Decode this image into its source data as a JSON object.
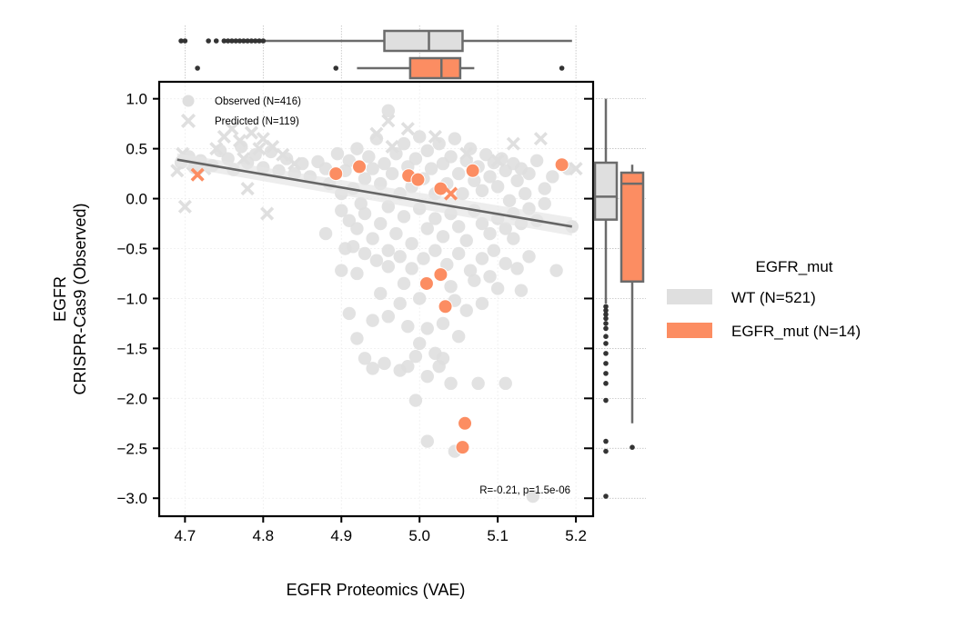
{
  "chart_data": {
    "type": "scatter",
    "xlabel": "EGFR Proteomics (VAE)",
    "ylabel_line1": "EGFR",
    "ylabel_line2": "CRISPR-Cas9 (Observed)",
    "xlim": [
      4.667,
      5.222
    ],
    "ylim": [
      -3.18,
      1.17
    ],
    "x_ticks": [
      {
        "value": 4.7,
        "label": "4.7"
      },
      {
        "value": 4.8,
        "label": "4.8"
      },
      {
        "value": 4.9,
        "label": "4.9"
      },
      {
        "value": 5.0,
        "label": "5.0"
      },
      {
        "value": 5.1,
        "label": "5.1"
      },
      {
        "value": 5.2,
        "label": "5.2"
      }
    ],
    "y_ticks": [
      {
        "value": 1.0,
        "label": "1.0"
      },
      {
        "value": 0.5,
        "label": "0.5"
      },
      {
        "value": 0.0,
        "label": "0.0"
      },
      {
        "value": -0.5,
        "label": "−0.5"
      },
      {
        "value": -1.0,
        "label": "−1.0"
      },
      {
        "value": -1.5,
        "label": "−1.5"
      },
      {
        "value": -2.0,
        "label": "−2.0"
      },
      {
        "value": -2.5,
        "label": "−2.5"
      },
      {
        "value": -3.0,
        "label": "−3.0"
      }
    ],
    "grid": true,
    "colors": {
      "wt": "#dfdfdf",
      "mut": "#fc8d62",
      "line": "#666666",
      "box_edge": "#6b6b6b",
      "outlier": "#333333"
    },
    "marker_legend": {
      "placement": "top-left",
      "observed_label": "Observed (N=416)",
      "predicted_label": "Predicted (N=119)"
    },
    "hue_legend": {
      "title": "EGFR_mut",
      "placement": "right-outside",
      "entries": [
        {
          "label": "WT (N=521)",
          "color": "#dfdfdf"
        },
        {
          "label": "EGFR_mut (N=14)",
          "color": "#fc8d62"
        }
      ]
    },
    "annotation": "R=-0.21, p=1.5e-06",
    "regression": {
      "x": [
        4.69,
        5.195
      ],
      "y": [
        0.39,
        -0.28
      ]
    },
    "mut_observed": [
      {
        "x": 4.893,
        "y": 0.25
      },
      {
        "x": 4.923,
        "y": 0.32
      },
      {
        "x": 4.986,
        "y": 0.23
      },
      {
        "x": 4.998,
        "y": 0.19
      },
      {
        "x": 5.027,
        "y": 0.1
      },
      {
        "x": 5.068,
        "y": 0.28
      },
      {
        "x": 5.182,
        "y": 0.34
      },
      {
        "x": 5.009,
        "y": -0.85
      },
      {
        "x": 5.027,
        "y": -0.76
      },
      {
        "x": 5.033,
        "y": -1.08
      },
      {
        "x": 5.058,
        "y": -2.25
      },
      {
        "x": 5.055,
        "y": -2.49
      }
    ],
    "mut_predicted": [
      {
        "x": 4.716,
        "y": 0.24
      },
      {
        "x": 5.04,
        "y": 0.05
      }
    ],
    "wt_observed": [
      {
        "x": 4.695,
        "y": 0.36
      },
      {
        "x": 4.705,
        "y": 0.42
      },
      {
        "x": 4.712,
        "y": 0.31
      },
      {
        "x": 4.72,
        "y": 0.38
      },
      {
        "x": 4.735,
        "y": 0.33
      },
      {
        "x": 4.745,
        "y": 0.48
      },
      {
        "x": 4.755,
        "y": 0.4
      },
      {
        "x": 4.762,
        "y": 0.29
      },
      {
        "x": 4.772,
        "y": 0.52
      },
      {
        "x": 4.78,
        "y": 0.36
      },
      {
        "x": 4.79,
        "y": 0.44
      },
      {
        "x": 4.8,
        "y": 0.31
      },
      {
        "x": 4.81,
        "y": 0.47
      },
      {
        "x": 4.82,
        "y": 0.28
      },
      {
        "x": 4.83,
        "y": 0.4
      },
      {
        "x": 4.84,
        "y": 0.25
      },
      {
        "x": 4.85,
        "y": 0.35
      },
      {
        "x": 4.86,
        "y": 0.22
      },
      {
        "x": 4.87,
        "y": 0.37
      },
      {
        "x": 4.88,
        "y": 0.3
      },
      {
        "x": 4.885,
        "y": 0.15
      },
      {
        "x": 4.895,
        "y": 0.45
      },
      {
        "x": 4.9,
        "y": 0.05
      },
      {
        "x": 4.905,
        "y": 0.28
      },
      {
        "x": 4.91,
        "y": 0.38
      },
      {
        "x": 4.915,
        "y": 0.1
      },
      {
        "x": 4.92,
        "y": 0.5
      },
      {
        "x": 4.925,
        "y": -0.05
      },
      {
        "x": 4.93,
        "y": 0.2
      },
      {
        "x": 4.935,
        "y": 0.42
      },
      {
        "x": 4.94,
        "y": 0.3
      },
      {
        "x": 4.945,
        "y": 0.6
      },
      {
        "x": 4.95,
        "y": 0.15
      },
      {
        "x": 4.955,
        "y": 0.35
      },
      {
        "x": 4.96,
        "y": 0.88
      },
      {
        "x": 4.965,
        "y": 0.25
      },
      {
        "x": 4.97,
        "y": 0.45
      },
      {
        "x": 4.975,
        "y": 0.05
      },
      {
        "x": 4.98,
        "y": 0.55
      },
      {
        "x": 4.985,
        "y": 0.32
      },
      {
        "x": 4.99,
        "y": 0.12
      },
      {
        "x": 4.995,
        "y": 0.4
      },
      {
        "x": 5.0,
        "y": 0.62
      },
      {
        "x": 5.005,
        "y": 0.2
      },
      {
        "x": 5.01,
        "y": 0.48
      },
      {
        "x": 5.015,
        "y": 0.3
      },
      {
        "x": 5.02,
        "y": 0.05
      },
      {
        "x": 5.025,
        "y": 0.55
      },
      {
        "x": 5.03,
        "y": 0.35
      },
      {
        "x": 5.035,
        "y": 0.15
      },
      {
        "x": 5.04,
        "y": 0.42
      },
      {
        "x": 5.045,
        "y": 0.6
      },
      {
        "x": 5.05,
        "y": 0.25
      },
      {
        "x": 5.055,
        "y": 0.05
      },
      {
        "x": 5.06,
        "y": 0.38
      },
      {
        "x": 5.065,
        "y": 0.5
      },
      {
        "x": 5.07,
        "y": 0.18
      },
      {
        "x": 5.075,
        "y": 0.32
      },
      {
        "x": 5.08,
        "y": 0.08
      },
      {
        "x": 5.085,
        "y": 0.44
      },
      {
        "x": 5.09,
        "y": 0.22
      },
      {
        "x": 5.095,
        "y": 0.36
      },
      {
        "x": 5.1,
        "y": 0.12
      },
      {
        "x": 5.105,
        "y": 0.4
      },
      {
        "x": 5.11,
        "y": 0.28
      },
      {
        "x": 5.115,
        "y": -0.02
      },
      {
        "x": 5.12,
        "y": 0.35
      },
      {
        "x": 5.125,
        "y": 0.18
      },
      {
        "x": 5.13,
        "y": 0.3
      },
      {
        "x": 5.135,
        "y": 0.05
      },
      {
        "x": 5.14,
        "y": 0.25
      },
      {
        "x": 5.15,
        "y": 0.38
      },
      {
        "x": 5.16,
        "y": 0.1
      },
      {
        "x": 5.17,
        "y": 0.22
      },
      {
        "x": 5.19,
        "y": 0.3
      },
      {
        "x": 5.195,
        "y": -0.28
      },
      {
        "x": 4.88,
        "y": -0.35
      },
      {
        "x": 4.9,
        "y": -0.12
      },
      {
        "x": 4.91,
        "y": -0.22
      },
      {
        "x": 4.92,
        "y": -0.3
      },
      {
        "x": 4.93,
        "y": -0.15
      },
      {
        "x": 4.94,
        "y": -0.4
      },
      {
        "x": 4.95,
        "y": -0.25
      },
      {
        "x": 4.96,
        "y": -0.08
      },
      {
        "x": 4.97,
        "y": -0.35
      },
      {
        "x": 4.98,
        "y": -0.18
      },
      {
        "x": 4.99,
        "y": -0.45
      },
      {
        "x": 5.0,
        "y": -0.1
      },
      {
        "x": 5.01,
        "y": -0.3
      },
      {
        "x": 5.02,
        "y": -0.2
      },
      {
        "x": 5.03,
        "y": -0.38
      },
      {
        "x": 5.04,
        "y": -0.15
      },
      {
        "x": 5.05,
        "y": -0.28
      },
      {
        "x": 5.06,
        "y": -0.42
      },
      {
        "x": 5.07,
        "y": -0.12
      },
      {
        "x": 5.08,
        "y": -0.25
      },
      {
        "x": 5.09,
        "y": -0.35
      },
      {
        "x": 5.1,
        "y": -0.2
      },
      {
        "x": 5.11,
        "y": -0.3
      },
      {
        "x": 5.12,
        "y": -0.15
      },
      {
        "x": 5.13,
        "y": -0.25
      },
      {
        "x": 5.14,
        "y": -0.1
      },
      {
        "x": 5.15,
        "y": -0.22
      },
      {
        "x": 5.16,
        "y": -0.05
      },
      {
        "x": 4.905,
        "y": -0.5
      },
      {
        "x": 4.915,
        "y": -0.48
      },
      {
        "x": 4.93,
        "y": -0.55
      },
      {
        "x": 4.945,
        "y": -0.62
      },
      {
        "x": 4.96,
        "y": -0.52
      },
      {
        "x": 4.975,
        "y": -0.58
      },
      {
        "x": 4.99,
        "y": -0.7
      },
      {
        "x": 5.005,
        "y": -0.6
      },
      {
        "x": 5.02,
        "y": -0.52
      },
      {
        "x": 5.035,
        "y": -0.66
      },
      {
        "x": 5.05,
        "y": -0.55
      },
      {
        "x": 5.065,
        "y": -0.72
      },
      {
        "x": 5.08,
        "y": -0.6
      },
      {
        "x": 5.095,
        "y": -0.52
      },
      {
        "x": 5.11,
        "y": -0.65
      },
      {
        "x": 5.125,
        "y": -0.7
      },
      {
        "x": 5.14,
        "y": -0.58
      },
      {
        "x": 5.175,
        "y": -0.72
      },
      {
        "x": 4.9,
        "y": -0.72
      },
      {
        "x": 4.92,
        "y": -0.75
      },
      {
        "x": 4.96,
        "y": -0.68
      },
      {
        "x": 4.98,
        "y": -0.85
      },
      {
        "x": 5.04,
        "y": -0.88
      },
      {
        "x": 5.07,
        "y": -0.82
      },
      {
        "x": 5.09,
        "y": -0.78
      },
      {
        "x": 5.1,
        "y": -0.9
      },
      {
        "x": 5.13,
        "y": -0.92
      },
      {
        "x": 4.95,
        "y": -0.95
      },
      {
        "x": 4.975,
        "y": -1.05
      },
      {
        "x": 5.0,
        "y": -1.0
      },
      {
        "x": 5.045,
        "y": -1.02
      },
      {
        "x": 5.06,
        "y": -1.12
      },
      {
        "x": 5.08,
        "y": -1.05
      },
      {
        "x": 4.91,
        "y": -1.15
      },
      {
        "x": 4.94,
        "y": -1.22
      },
      {
        "x": 4.96,
        "y": -1.18
      },
      {
        "x": 4.985,
        "y": -1.28
      },
      {
        "x": 5.01,
        "y": -1.3
      },
      {
        "x": 5.03,
        "y": -1.25
      },
      {
        "x": 5.05,
        "y": -1.38
      },
      {
        "x": 5.0,
        "y": -1.45
      },
      {
        "x": 5.02,
        "y": -1.55
      },
      {
        "x": 4.92,
        "y": -1.4
      },
      {
        "x": 4.995,
        "y": -1.58
      },
      {
        "x": 4.93,
        "y": -1.6
      },
      {
        "x": 4.94,
        "y": -1.7
      },
      {
        "x": 4.955,
        "y": -1.65
      },
      {
        "x": 4.975,
        "y": -1.72
      },
      {
        "x": 4.985,
        "y": -1.68
      },
      {
        "x": 5.01,
        "y": -1.78
      },
      {
        "x": 5.03,
        "y": -1.6
      },
      {
        "x": 5.04,
        "y": -1.85
      },
      {
        "x": 4.995,
        "y": -2.02
      },
      {
        "x": 5.075,
        "y": -1.85
      },
      {
        "x": 5.11,
        "y": -1.85
      },
      {
        "x": 5.025,
        "y": -1.68
      },
      {
        "x": 5.01,
        "y": -2.43
      },
      {
        "x": 5.045,
        "y": -2.53
      },
      {
        "x": 5.145,
        "y": -2.98
      },
      {
        "x": 5.12,
        "y": -0.4
      }
    ],
    "wt_predicted": [
      {
        "x": 4.69,
        "y": 0.28
      },
      {
        "x": 4.697,
        "y": 0.45
      },
      {
        "x": 4.7,
        "y": -0.08
      },
      {
        "x": 4.71,
        "y": 0.35
      },
      {
        "x": 4.725,
        "y": 0.3
      },
      {
        "x": 4.74,
        "y": 0.5
      },
      {
        "x": 4.75,
        "y": 0.62
      },
      {
        "x": 4.76,
        "y": 0.7
      },
      {
        "x": 4.77,
        "y": 0.58
      },
      {
        "x": 4.775,
        "y": 0.4
      },
      {
        "x": 4.785,
        "y": 0.66
      },
      {
        "x": 4.795,
        "y": 0.5
      },
      {
        "x": 4.8,
        "y": 0.6
      },
      {
        "x": 4.805,
        "y": -0.15
      },
      {
        "x": 4.812,
        "y": 0.52
      },
      {
        "x": 4.825,
        "y": 0.44
      },
      {
        "x": 4.84,
        "y": 0.35
      },
      {
        "x": 4.78,
        "y": 0.1
      },
      {
        "x": 4.945,
        "y": 0.65
      },
      {
        "x": 4.965,
        "y": 0.52
      },
      {
        "x": 4.985,
        "y": 0.7
      },
      {
        "x": 5.02,
        "y": 0.62
      },
      {
        "x": 5.06,
        "y": 0.45
      },
      {
        "x": 5.1,
        "y": 0.38
      },
      {
        "x": 5.155,
        "y": 0.6
      },
      {
        "x": 5.2,
        "y": 0.3
      },
      {
        "x": 5.12,
        "y": 0.55
      },
      {
        "x": 4.96,
        "y": 0.78
      }
    ],
    "x_marginal": {
      "wt": {
        "q1": 4.955,
        "median": 5.012,
        "q3": 5.055,
        "whisker_low": 4.8,
        "whisker_high": 5.195,
        "outliers": [
          4.695,
          4.7,
          4.73,
          4.74,
          4.75,
          4.755,
          4.76,
          4.765,
          4.77,
          4.775,
          4.78,
          4.785,
          4.79,
          4.795,
          4.8
        ]
      },
      "mut": {
        "q1": 4.988,
        "median": 5.028,
        "q3": 5.052,
        "whisker_low": 4.92,
        "whisker_high": 5.07,
        "outliers": [
          4.716,
          4.893,
          5.182
        ]
      }
    },
    "y_marginal": {
      "wt": {
        "q1": -0.21,
        "median": 0.02,
        "q3": 0.36,
        "whisker_low": -1.05,
        "whisker_high": 1.0,
        "outliers": [
          -1.08,
          -1.12,
          -1.16,
          -1.2,
          -1.25,
          -1.3,
          -1.38,
          -1.45,
          -1.55,
          -1.65,
          -1.75,
          -1.85,
          -2.02,
          -2.43,
          -2.53,
          -2.98
        ]
      },
      "mut": {
        "q1": -0.83,
        "median": 0.15,
        "q3": 0.26,
        "whisker_low": -2.25,
        "whisker_high": 0.34,
        "outliers": [
          -2.49
        ]
      }
    }
  }
}
